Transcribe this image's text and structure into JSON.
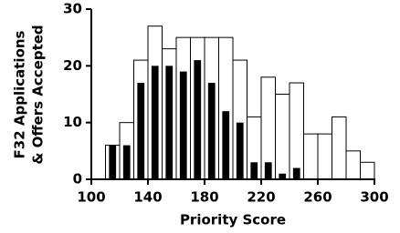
{
  "chart_data": {
    "type": "histogram",
    "xlabel": "Priority Score",
    "ylabel": [
      "F32 Applications",
      "& Offers Accepted"
    ],
    "bins": [
      110,
      120,
      130,
      140,
      150,
      160,
      170,
      180,
      190,
      200,
      210,
      220,
      230,
      240,
      250,
      260,
      270,
      280,
      290,
      300
    ],
    "series": [
      {
        "name": "Applications",
        "color": "#ffffff",
        "values": [
          6,
          10,
          21,
          27,
          23,
          25,
          25,
          25,
          25,
          21,
          11,
          18,
          15,
          17,
          8,
          8,
          11,
          5,
          3
        ]
      },
      {
        "name": "Offers Accepted",
        "color": "#000000",
        "values": [
          6,
          6,
          17,
          20,
          20,
          19,
          21,
          17,
          12,
          10,
          3,
          3,
          1,
          2,
          0,
          0,
          0,
          0,
          0
        ]
      }
    ],
    "xlim": [
      100,
      300
    ],
    "xticks": [
      100,
      140,
      180,
      220,
      260,
      300
    ],
    "ylim": [
      0,
      30
    ],
    "yticks": [
      0,
      10,
      20,
      30
    ]
  }
}
